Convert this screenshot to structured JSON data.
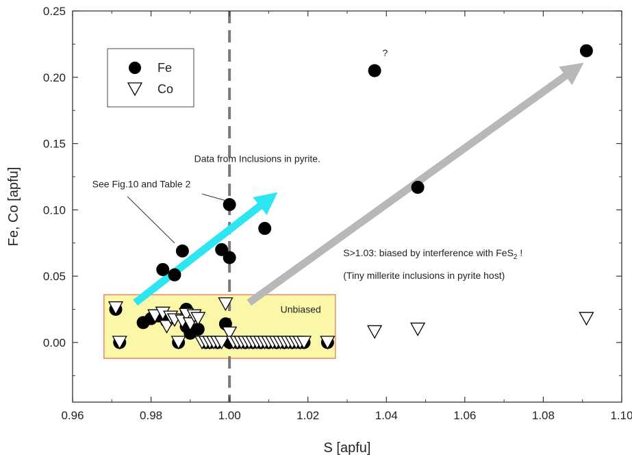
{
  "chart_data": {
    "type": "scatter",
    "xlabel": "S [apfu]",
    "ylabel": "Fe, Co [apfu]",
    "xlim": [
      0.96,
      1.1
    ],
    "ylim": [
      -0.045,
      0.25
    ],
    "xticks": [
      "0.96",
      "0.98",
      "1.00",
      "1.02",
      "1.04",
      "1.06",
      "1.08",
      "1.10"
    ],
    "yticks": [
      "0.00",
      "0.05",
      "0.10",
      "0.15",
      "0.20",
      "0.25"
    ],
    "grid": false,
    "legend_position": "top-left",
    "reference_line": {
      "x": 1.0,
      "style": "dashed",
      "color": "#7a7a7a"
    },
    "series": [
      {
        "name": "Fe",
        "marker": "filled-circle",
        "color": "#000000",
        "points": [
          [
            0.971,
            0.025
          ],
          [
            0.972,
            0.0
          ],
          [
            0.978,
            0.015
          ],
          [
            0.98,
            0.018
          ],
          [
            0.982,
            0.02
          ],
          [
            0.983,
            0.055
          ],
          [
            0.984,
            0.016
          ],
          [
            0.986,
            0.051
          ],
          [
            0.987,
            0.0
          ],
          [
            0.988,
            0.069
          ],
          [
            0.989,
            0.025
          ],
          [
            0.989,
            0.012
          ],
          [
            0.99,
            0.007
          ],
          [
            0.992,
            0.01
          ],
          [
            0.994,
            0.0
          ],
          [
            0.995,
            0.0
          ],
          [
            0.997,
            0.0
          ],
          [
            0.998,
            0.07
          ],
          [
            0.999,
            0.014
          ],
          [
            1.0,
            0.104
          ],
          [
            1.0,
            0.064
          ],
          [
            1.0,
            0.0
          ],
          [
            1.002,
            0.0
          ],
          [
            1.004,
            0.0
          ],
          [
            1.006,
            0.0
          ],
          [
            1.008,
            0.0
          ],
          [
            1.009,
            0.086
          ],
          [
            1.01,
            0.0
          ],
          [
            1.012,
            0.0
          ],
          [
            1.014,
            0.0
          ],
          [
            1.016,
            0.0
          ],
          [
            1.018,
            0.0
          ],
          [
            1.019,
            0.0
          ],
          [
            1.025,
            0.0
          ],
          [
            1.037,
            0.205
          ],
          [
            1.048,
            0.117
          ],
          [
            1.091,
            0.22
          ]
        ]
      },
      {
        "name": "Co",
        "marker": "open-triangle-down",
        "color": "#ffffff",
        "points": [
          [
            0.971,
            0.026
          ],
          [
            0.972,
            0.0
          ],
          [
            0.981,
            0.02
          ],
          [
            0.983,
            0.022
          ],
          [
            0.984,
            0.012
          ],
          [
            0.985,
            0.019
          ],
          [
            0.986,
            0.017
          ],
          [
            0.987,
            0.0
          ],
          [
            0.988,
            0.016
          ],
          [
            0.989,
            0.021
          ],
          [
            0.99,
            0.014
          ],
          [
            0.991,
            0.02
          ],
          [
            0.992,
            0.018
          ],
          [
            0.993,
            0.0
          ],
          [
            0.994,
            0.0
          ],
          [
            0.995,
            0.0
          ],
          [
            0.996,
            0.0
          ],
          [
            0.997,
            0.0
          ],
          [
            0.998,
            0.0
          ],
          [
            0.999,
            0.029
          ],
          [
            1.0,
            0.007
          ],
          [
            1.001,
            0.0
          ],
          [
            1.002,
            0.0
          ],
          [
            1.003,
            0.0
          ],
          [
            1.004,
            0.0
          ],
          [
            1.005,
            0.0
          ],
          [
            1.006,
            0.0
          ],
          [
            1.007,
            0.0
          ],
          [
            1.008,
            0.0
          ],
          [
            1.009,
            0.0
          ],
          [
            1.01,
            0.0
          ],
          [
            1.011,
            0.0
          ],
          [
            1.012,
            0.0
          ],
          [
            1.013,
            0.0
          ],
          [
            1.014,
            0.0
          ],
          [
            1.015,
            0.0
          ],
          [
            1.016,
            0.0
          ],
          [
            1.017,
            0.0
          ],
          [
            1.018,
            0.0
          ],
          [
            1.019,
            0.0
          ],
          [
            1.025,
            0.0
          ],
          [
            1.037,
            0.008
          ],
          [
            1.048,
            0.01
          ],
          [
            1.091,
            0.018
          ]
        ]
      }
    ],
    "highlight_box": {
      "x": [
        0.968,
        1.027
      ],
      "y": [
        -0.012,
        0.036
      ],
      "fill": "#fbf7a8",
      "stroke": "#e8866c",
      "label": "Unbiased",
      "label_at": [
        1.013,
        0.025
      ]
    },
    "arrows": [
      {
        "from": [
          0.976,
          0.03
        ],
        "to": [
          1.01,
          0.108
        ],
        "color": "#2ee6f2"
      },
      {
        "from": [
          1.005,
          0.03
        ],
        "to": [
          1.088,
          0.206
        ],
        "color": "#b8b8b8"
      }
    ],
    "annotations": [
      {
        "text": "Data from Inclusions  in pyrite.",
        "at": [
          0.991,
          0.136
        ],
        "anchor": "start"
      },
      {
        "text": "See Fig.10 and Table 2",
        "at": [
          0.965,
          0.117
        ],
        "anchor": "start"
      },
      {
        "text": "?",
        "at": [
          1.039,
          0.216
        ],
        "anchor": "start"
      },
      {
        "text": "S>1.03: biased by interference with FeS",
        "sub": "2",
        "suffix": " !",
        "at": [
          1.029,
          0.065
        ],
        "anchor": "start"
      },
      {
        "text": "(Tiny millerite inclusions in pyrite host)",
        "at": [
          1.029,
          0.048
        ],
        "anchor": "start"
      }
    ],
    "pointer_lines": [
      {
        "from": [
          0.974,
          0.11
        ],
        "to": [
          0.986,
          0.075
        ]
      },
      {
        "from": [
          0.993,
          0.112
        ],
        "to": [
          0.999,
          0.107
        ]
      }
    ]
  }
}
